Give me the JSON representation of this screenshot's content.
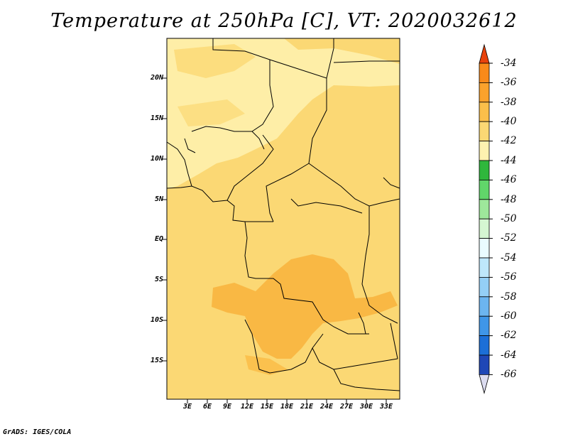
{
  "title": "Temperature at 250hPa [C], VT: 2020032612",
  "footer": "GrADS: IGES/COLA",
  "map": {
    "lat_labels": [
      "20N",
      "15N",
      "10N",
      "5N",
      "EQ",
      "5S",
      "10S",
      "15S"
    ],
    "lon_labels": [
      "3E",
      "6E",
      "9E",
      "12E",
      "15E",
      "18E",
      "21E",
      "24E",
      "27E",
      "30E",
      "33E"
    ],
    "colors": {
      "base": "#fbd874",
      "light": "#fef2b0",
      "warm": "#f8b53f",
      "border": "#000000"
    }
  },
  "colorbar": {
    "labels": [
      "-34",
      "-36",
      "-38",
      "-40",
      "-42",
      "-44",
      "-46",
      "-48",
      "-50",
      "-52",
      "-54",
      "-56",
      "-58",
      "-60",
      "-62",
      "-64",
      "-66"
    ],
    "colors": [
      "#f05a10",
      "#f98a1a",
      "#fba22c",
      "#fbbf4a",
      "#fbd874",
      "#fef2b0",
      "#2fb73c",
      "#61d66a",
      "#9ee89b",
      "#d5f6d2",
      "#eafcff",
      "#bee7fb",
      "#94cff6",
      "#6cb5f0",
      "#3f96e8",
      "#1c6fd7",
      "#1f47b6",
      "#0a1872"
    ],
    "top_cap_color": "#e8420c",
    "bottom_cap_color": "#dcdcf0"
  }
}
